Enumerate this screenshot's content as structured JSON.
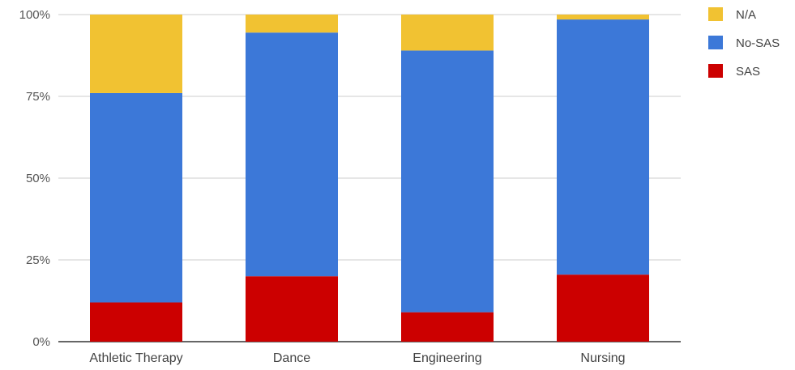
{
  "chart_data": {
    "type": "bar",
    "stacked": true,
    "percent": true,
    "categories": [
      "Athletic Therapy",
      "Dance",
      "Engineering",
      "Nursing"
    ],
    "series": [
      {
        "name": "SAS",
        "color": "#cc0000",
        "values": [
          12,
          20,
          9,
          20.5
        ]
      },
      {
        "name": "No-SAS",
        "color": "#3c78d8",
        "values": [
          64,
          74.5,
          80,
          78
        ]
      },
      {
        "name": "N/A",
        "color": "#f1c232",
        "values": [
          24,
          5.5,
          11,
          1.5
        ]
      }
    ],
    "yticks": [
      "0%",
      "25%",
      "50%",
      "75%",
      "100%"
    ],
    "ylim": [
      0,
      100
    ],
    "grid": true,
    "legend_position": "right",
    "legend_order": [
      "N/A",
      "No-SAS",
      "SAS"
    ],
    "colors": {
      "gridline": "#cccccc",
      "baseline": "#333333",
      "tick_text": "#555555",
      "category_text": "#444444"
    }
  }
}
